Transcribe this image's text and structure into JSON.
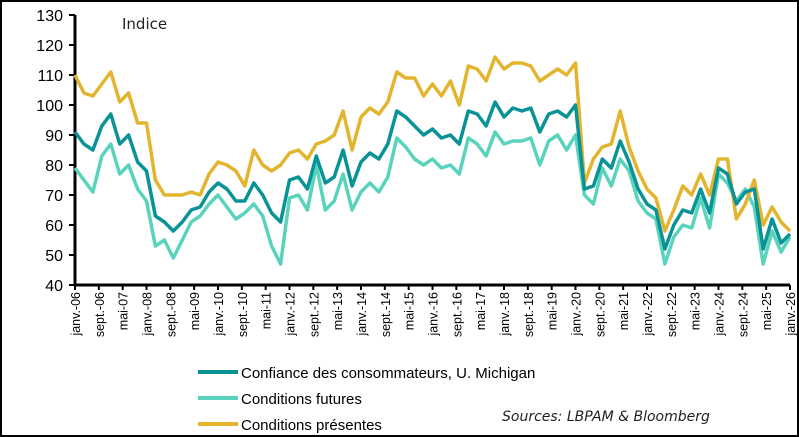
{
  "chart_data": {
    "type": "line",
    "unit_label": "Indice",
    "source": "Sources: LBPAM & Bloomberg",
    "ylim": [
      40,
      130
    ],
    "yticks": [
      40,
      50,
      60,
      70,
      80,
      90,
      100,
      110,
      120,
      130
    ],
    "xrange": [
      "2006-01",
      "2026-01"
    ],
    "xtick_labels": [
      "janv.-06",
      "sept.-06",
      "mai-07",
      "janv.-08",
      "sept.-08",
      "mai-09",
      "janv.-10",
      "sept.-10",
      "mai-11",
      "janv.-12",
      "sept.-12",
      "mai-13",
      "janv.-14",
      "sept.-14",
      "mai-15",
      "janv.-16",
      "sept.-16",
      "mai-17",
      "janv.-18",
      "sept.-18",
      "mai-19",
      "janv.-20",
      "sept.-20",
      "mai-21",
      "janv.-22",
      "sept.-22",
      "mai-23",
      "janv.-24",
      "sept.-24",
      "mai-25",
      "janv.-26"
    ],
    "grid": false,
    "legend": "bottom",
    "x": [
      "2006-01",
      "2006-04",
      "2006-07",
      "2006-10",
      "2007-01",
      "2007-04",
      "2007-07",
      "2007-10",
      "2008-01",
      "2008-04",
      "2008-07",
      "2008-10",
      "2009-01",
      "2009-04",
      "2009-07",
      "2009-10",
      "2010-01",
      "2010-04",
      "2010-07",
      "2010-10",
      "2011-01",
      "2011-04",
      "2011-07",
      "2011-10",
      "2012-01",
      "2012-04",
      "2012-07",
      "2012-10",
      "2013-01",
      "2013-04",
      "2013-07",
      "2013-10",
      "2014-01",
      "2014-04",
      "2014-07",
      "2014-10",
      "2015-01",
      "2015-04",
      "2015-07",
      "2015-10",
      "2016-01",
      "2016-04",
      "2016-07",
      "2016-10",
      "2017-01",
      "2017-04",
      "2017-07",
      "2017-10",
      "2018-01",
      "2018-04",
      "2018-07",
      "2018-10",
      "2019-01",
      "2019-04",
      "2019-07",
      "2019-10",
      "2020-01",
      "2020-04",
      "2020-07",
      "2020-10",
      "2021-01",
      "2021-04",
      "2021-07",
      "2021-10",
      "2022-01",
      "2022-04",
      "2022-07",
      "2022-10",
      "2023-01",
      "2023-04",
      "2023-07",
      "2023-10",
      "2024-01",
      "2024-04",
      "2024-07",
      "2024-10",
      "2025-01",
      "2025-04",
      "2025-07",
      "2025-10",
      "2026-01"
    ],
    "series": [
      {
        "name": "Confiance des consommateurs, U. Michigan",
        "color": "#0a9396",
        "values": [
          91,
          87,
          85,
          93,
          97,
          87,
          90,
          81,
          78,
          63,
          61,
          58,
          61,
          65,
          66,
          71,
          74,
          72,
          68,
          68,
          74,
          70,
          64,
          61,
          75,
          76,
          72,
          83,
          74,
          76,
          85,
          73,
          81,
          84,
          82,
          87,
          98,
          96,
          93,
          90,
          92,
          89,
          90,
          87,
          98,
          97,
          93,
          101,
          96,
          99,
          98,
          99,
          91,
          97,
          98,
          96,
          100,
          72,
          73,
          82,
          79,
          88,
          81,
          72,
          67,
          65,
          52,
          60,
          65,
          64,
          72,
          64,
          79,
          77,
          67,
          71,
          72,
          52,
          62,
          54,
          57
        ]
      },
      {
        "name": "Conditions futures",
        "color": "#5ad3bd",
        "values": [
          79,
          75,
          71,
          83,
          87,
          77,
          80,
          72,
          68,
          53,
          55,
          49,
          55,
          61,
          63,
          67,
          70,
          66,
          62,
          64,
          67,
          63,
          53,
          47,
          69,
          70,
          65,
          80,
          65,
          68,
          77,
          65,
          71,
          74,
          71,
          76,
          89,
          86,
          82,
          80,
          82,
          79,
          80,
          77,
          89,
          87,
          83,
          91,
          87,
          88,
          88,
          89,
          80,
          88,
          90,
          85,
          90,
          70,
          67,
          79,
          73,
          82,
          78,
          68,
          64,
          62,
          47,
          56,
          60,
          59,
          69,
          59,
          77,
          74,
          68,
          72,
          66,
          47,
          58,
          51,
          56
        ]
      },
      {
        "name": "Conditions présentes",
        "color": "#e3b52f",
        "values": [
          110,
          104,
          103,
          107,
          111,
          101,
          104,
          94,
          94,
          75,
          70,
          70,
          70,
          71,
          70,
          77,
          81,
          80,
          78,
          73,
          85,
          80,
          78,
          80,
          84,
          85,
          82,
          87,
          88,
          90,
          98,
          85,
          96,
          99,
          97,
          101,
          111,
          109,
          109,
          103,
          107,
          103,
          108,
          100,
          113,
          112,
          108,
          116,
          112,
          114,
          114,
          113,
          108,
          110,
          112,
          110,
          114,
          74,
          82,
          86,
          87,
          98,
          86,
          78,
          72,
          69,
          58,
          65,
          73,
          70,
          77,
          70,
          82,
          82,
          62,
          67,
          75,
          60,
          66,
          61,
          58
        ]
      }
    ]
  }
}
